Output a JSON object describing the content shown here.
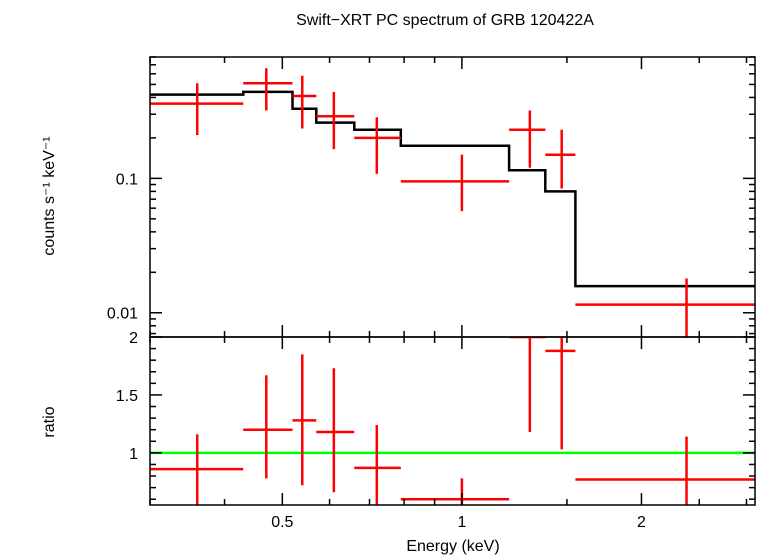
{
  "chart_data": {
    "type": "scatter",
    "title": "Swift−XRT PC spectrum of GRB 120422A",
    "xlabel": "Energy (keV)",
    "xscale": "log",
    "xlim": [
      0.3,
      3.1
    ],
    "panels": [
      {
        "id": "spectrum",
        "ylabel": "counts s⁻¹ keV⁻¹",
        "yscale": "log",
        "ylim": [
          0.0066,
          0.8
        ],
        "yticks": [
          {
            "value": 0.1,
            "label": "0.1"
          },
          {
            "value": 0.01,
            "label": "0.01"
          }
        ],
        "data_points": [
          {
            "x": 0.36,
            "xerr": [
              0.3,
              0.43
            ],
            "y": 0.36,
            "yerr": [
              0.21,
              0.51
            ]
          },
          {
            "x": 0.47,
            "xerr": [
              0.43,
              0.52
            ],
            "y": 0.51,
            "yerr": [
              0.32,
              0.66
            ]
          },
          {
            "x": 0.54,
            "xerr": [
              0.52,
              0.57
            ],
            "y": 0.41,
            "yerr": [
              0.235,
              0.58
            ]
          },
          {
            "x": 0.61,
            "xerr": [
              0.57,
              0.66
            ],
            "y": 0.29,
            "yerr": [
              0.165,
              0.44
            ]
          },
          {
            "x": 0.72,
            "xerr": [
              0.66,
              0.79
            ],
            "y": 0.2,
            "yerr": [
              0.108,
              0.285
            ]
          },
          {
            "x": 1.0,
            "xerr": [
              0.79,
              1.2
            ],
            "y": 0.095,
            "yerr": [
              0.057,
              0.15
            ]
          },
          {
            "x": 1.3,
            "xerr": [
              1.2,
              1.38
            ],
            "y": 0.23,
            "yerr": [
              0.12,
              0.32
            ]
          },
          {
            "x": 1.47,
            "xerr": [
              1.38,
              1.55
            ],
            "y": 0.15,
            "yerr": [
              0.084,
              0.23
            ]
          },
          {
            "x": 2.38,
            "xerr": [
              1.55,
              3.1
            ],
            "y": 0.0115,
            "yerr": [
              0.0066,
              0.018
            ]
          }
        ],
        "model_steps": [
          {
            "x0": 0.3,
            "x1": 0.43,
            "y": 0.42
          },
          {
            "x0": 0.43,
            "x1": 0.52,
            "y": 0.44
          },
          {
            "x0": 0.52,
            "x1": 0.57,
            "y": 0.33
          },
          {
            "x0": 0.57,
            "x1": 0.66,
            "y": 0.26
          },
          {
            "x0": 0.66,
            "x1": 0.79,
            "y": 0.23
          },
          {
            "x0": 0.79,
            "x1": 1.2,
            "y": 0.175
          },
          {
            "x0": 1.2,
            "x1": 1.38,
            "y": 0.115
          },
          {
            "x0": 1.38,
            "x1": 1.55,
            "y": 0.08
          },
          {
            "x0": 1.55,
            "x1": 3.1,
            "y": 0.0158
          }
        ]
      },
      {
        "id": "ratio",
        "ylabel": "ratio",
        "yscale": "linear",
        "ylim": [
          0.55,
          2.0
        ],
        "yticks": [
          {
            "value": 2,
            "label": "2"
          },
          {
            "value": 1.5,
            "label": "1.5"
          },
          {
            "value": 1,
            "label": "1"
          }
        ],
        "reference_line": 1.0,
        "data_points": [
          {
            "x": 0.36,
            "xerr": [
              0.3,
              0.43
            ],
            "y": 0.86,
            "yerr": [
              0.55,
              1.16
            ]
          },
          {
            "x": 0.47,
            "xerr": [
              0.43,
              0.52
            ],
            "y": 1.2,
            "yerr": [
              0.78,
              1.67
            ]
          },
          {
            "x": 0.54,
            "xerr": [
              0.52,
              0.57
            ],
            "y": 1.28,
            "yerr": [
              0.72,
              1.85
            ]
          },
          {
            "x": 0.61,
            "xerr": [
              0.57,
              0.66
            ],
            "y": 1.18,
            "yerr": [
              0.66,
              1.73
            ]
          },
          {
            "x": 0.72,
            "xerr": [
              0.66,
              0.79
            ],
            "y": 0.87,
            "yerr": [
              0.55,
              1.24
            ]
          },
          {
            "x": 1.0,
            "xerr": [
              0.79,
              1.2
            ],
            "y": 0.6,
            "yerr": [
              0.55,
              0.78
            ]
          },
          {
            "x": 1.3,
            "xerr": [
              1.2,
              1.38
            ],
            "y": 2.0,
            "yerr": [
              1.18,
              2.0
            ]
          },
          {
            "x": 1.47,
            "xerr": [
              1.38,
              1.55
            ],
            "y": 1.88,
            "yerr": [
              1.03,
              2.0
            ]
          },
          {
            "x": 2.38,
            "xerr": [
              1.55,
              3.1
            ],
            "y": 0.77,
            "yerr": [
              0.55,
              1.14
            ]
          }
        ]
      }
    ],
    "xticks": [
      {
        "value": 0.5,
        "label": "0.5"
      },
      {
        "value": 1,
        "label": "1"
      },
      {
        "value": 2,
        "label": "2"
      }
    ],
    "colors": {
      "data": "#ff0000",
      "model": "#000000",
      "reference": "#00ff00",
      "axes": "#000000"
    }
  }
}
